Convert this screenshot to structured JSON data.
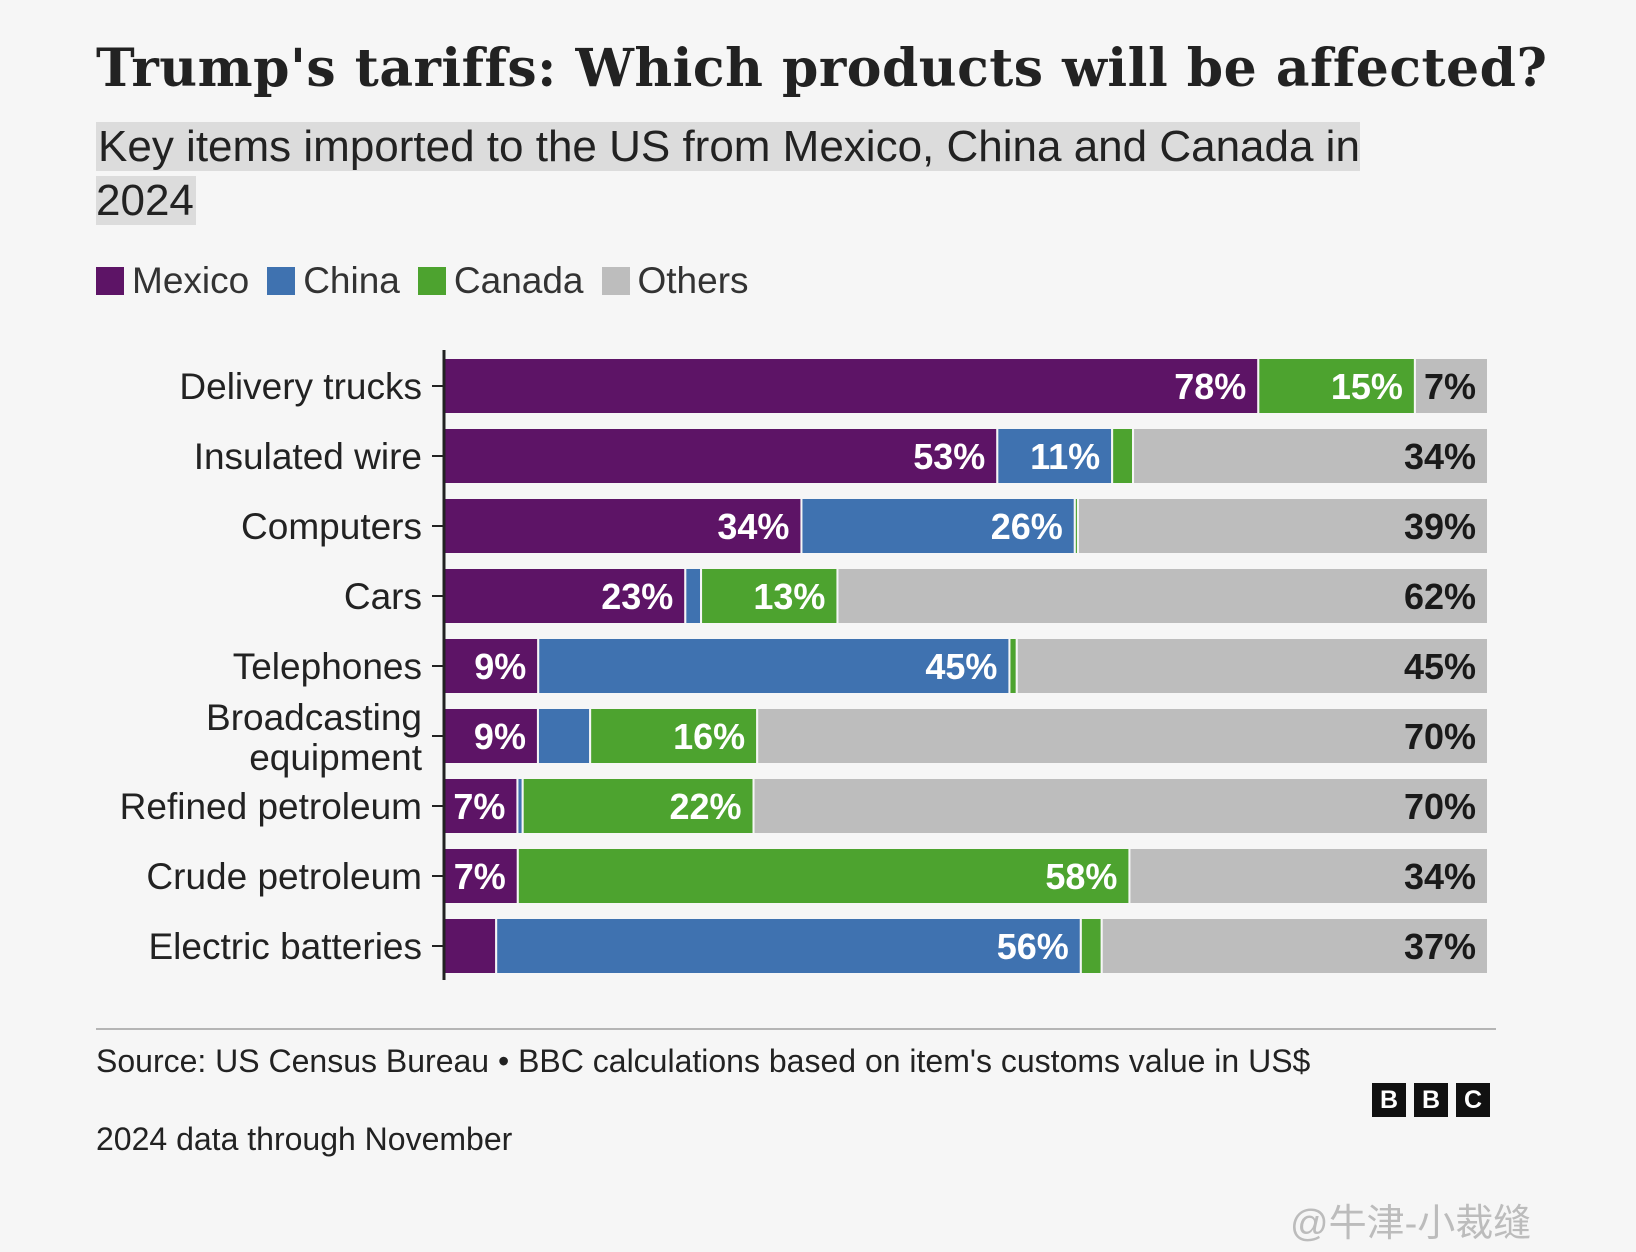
{
  "title": "Trump's tariffs: Which products will be affected?",
  "subtitle": "Key items imported to the US from Mexico, China and Canada in 2024",
  "source": "Source: US Census Bureau • BBC calculations based on item's customs value in US$",
  "note": "2024 data through November",
  "logo": [
    "B",
    "B",
    "C"
  ],
  "watermark": "@牛津-小裁缝",
  "legend": [
    {
      "label": "Mexico",
      "color": "#5d1466"
    },
    {
      "label": "China",
      "color": "#3f72b0"
    },
    {
      "label": "Canada",
      "color": "#4da32f"
    },
    {
      "label": "Others",
      "color": "#bdbdbd"
    }
  ],
  "chart_data": {
    "type": "bar",
    "orientation": "horizontal",
    "stacked": true,
    "title": "Trump's tariffs: Which products will be affected?",
    "xlabel": "",
    "ylabel": "",
    "xlim": [
      0,
      100
    ],
    "unit": "%",
    "categories": [
      "Delivery trucks",
      "Insulated wire",
      "Computers",
      "Cars",
      "Telephones",
      "Broadcasting equipment",
      "Refined petroleum",
      "Crude petroleum",
      "Electric batteries"
    ],
    "series": [
      {
        "name": "Mexico",
        "color": "#5d1466",
        "values": [
          78,
          53,
          34,
          23,
          9,
          9,
          7,
          7,
          5
        ],
        "labels": [
          "78%",
          "53%",
          "34%",
          "23%",
          "9%",
          "9%",
          "7%",
          "7%",
          ""
        ]
      },
      {
        "name": "China",
        "color": "#3f72b0",
        "values": [
          0,
          11,
          26,
          1.5,
          45,
          5,
          0.5,
          0,
          56
        ],
        "labels": [
          "",
          "11%",
          "26%",
          "",
          "45%",
          "",
          "",
          "",
          "56%"
        ]
      },
      {
        "name": "Canada",
        "color": "#4da32f",
        "values": [
          15,
          2,
          0.3,
          13,
          0.7,
          16,
          22,
          58,
          2
        ],
        "labels": [
          "15%",
          "",
          "",
          "13%",
          "",
          "16%",
          "22%",
          "58%",
          ""
        ]
      },
      {
        "name": "Others",
        "color": "#bdbdbd",
        "values": [
          7,
          34,
          39,
          62,
          45,
          70,
          70,
          34,
          37
        ],
        "labels": [
          "7%",
          "34%",
          "39%",
          "62%",
          "45%",
          "70%",
          "70%",
          "34%",
          "37%"
        ]
      }
    ]
  }
}
